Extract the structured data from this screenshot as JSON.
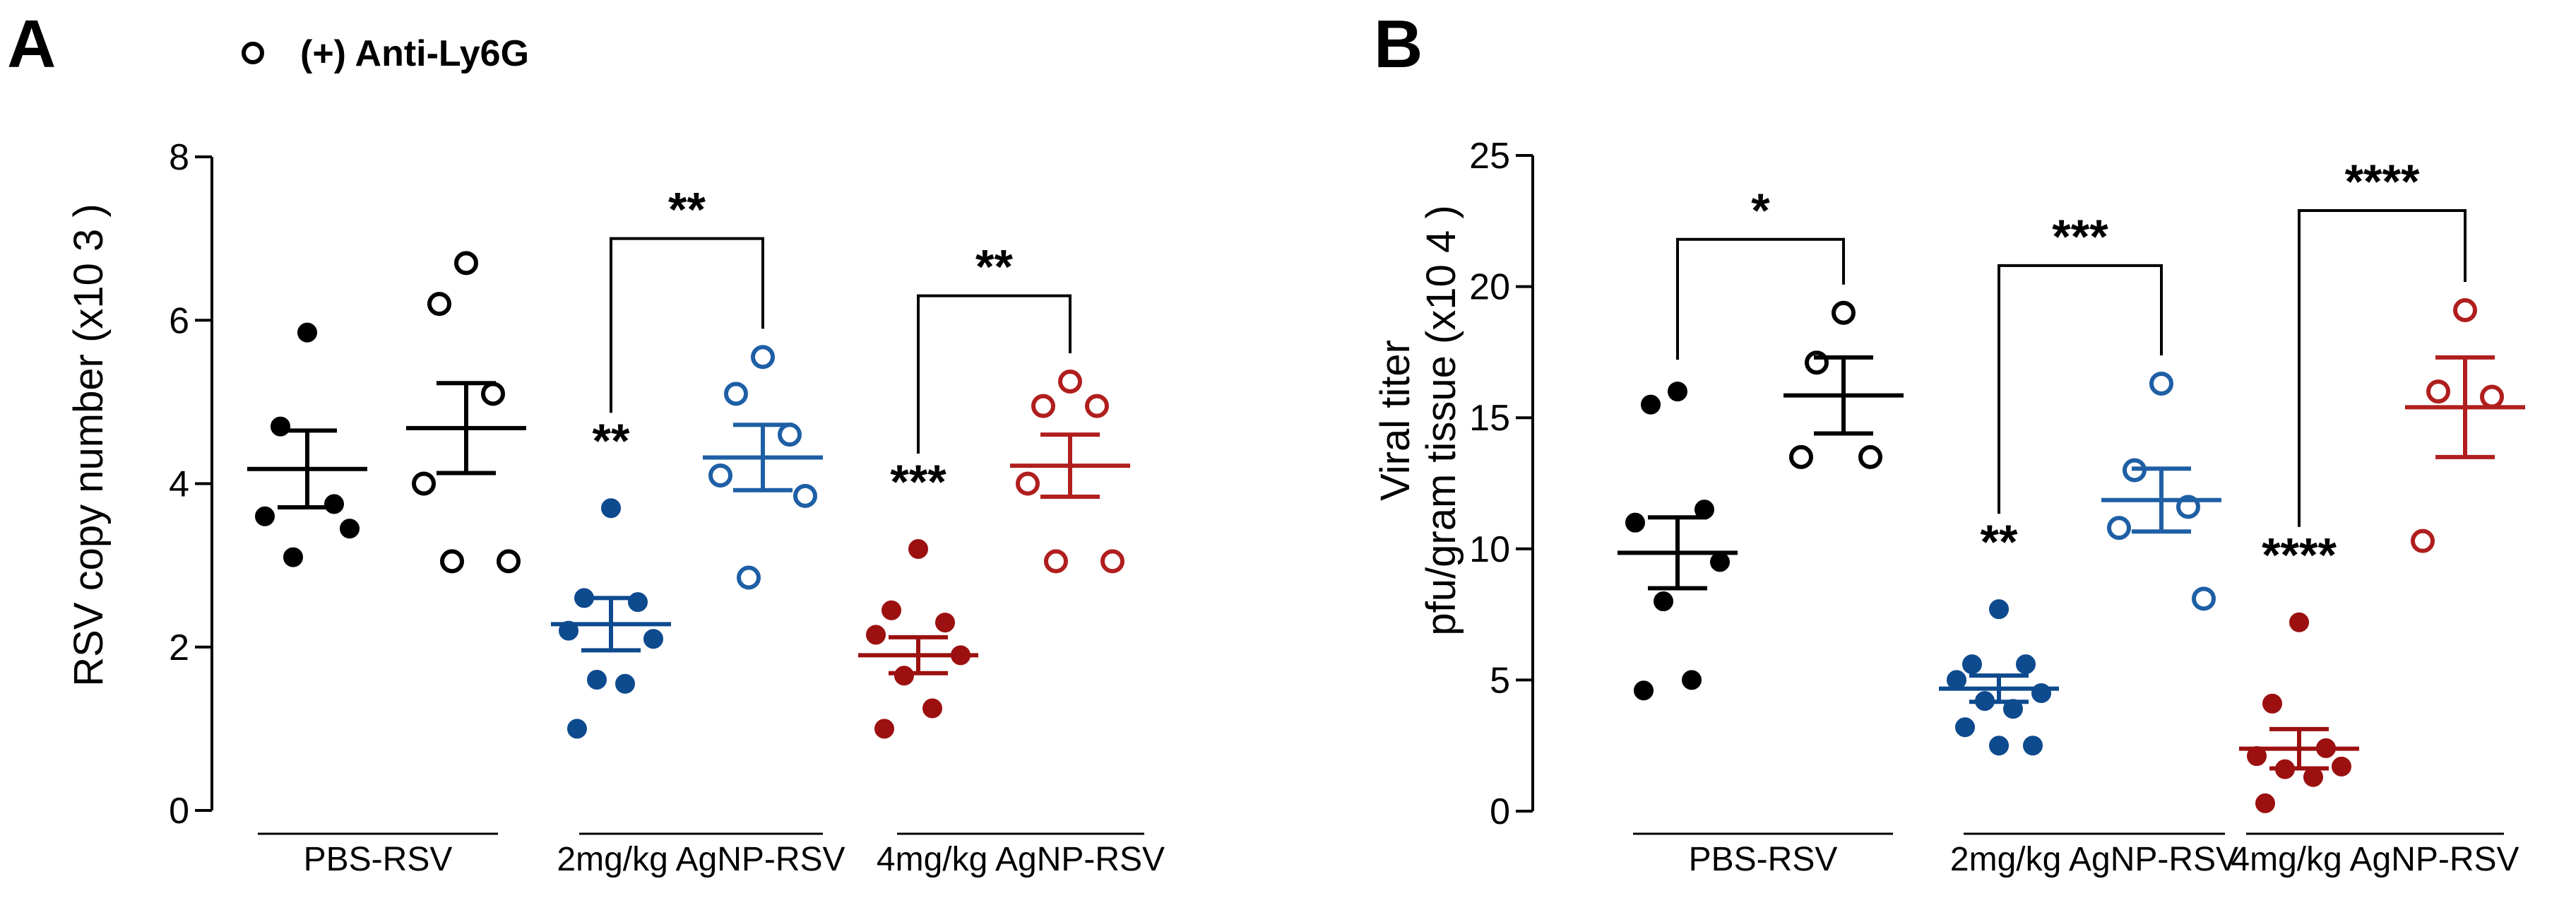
{
  "legend": {
    "label": "(+) Anti-Ly6G",
    "marker": "open-circle"
  },
  "panels": [
    {
      "letter": "A",
      "ylabel": "RSV copy number (x10 3 )"
    },
    {
      "letter": "B",
      "ylabel_line1": "Viral titer",
      "ylabel_line2": "pfu/gram tissue (x10 4 )"
    }
  ],
  "chart_data": [
    {
      "type": "scatter",
      "panel": "A",
      "title": "",
      "ylabel": "RSV copy number (x10 3 )",
      "ylim": [
        0,
        8
      ],
      "yticks": [
        0,
        2,
        4,
        6,
        8
      ],
      "groups": [
        "PBS-RSV",
        "2mg/kg AgNP-RSV",
        "4mg/kg AgNP-RSV"
      ],
      "series": [
        {
          "group": "PBS-RSV",
          "treatment": "control",
          "marker": "filled",
          "color": "#000000",
          "values": [
            5.85,
            4.7,
            3.75,
            3.6,
            3.45,
            3.1
          ],
          "mean": 4.18,
          "sem": 0.47
        },
        {
          "group": "PBS-RSV",
          "treatment": "(+) Anti-Ly6G",
          "marker": "open",
          "color": "#000000",
          "values": [
            6.7,
            6.2,
            5.1,
            4.0,
            3.05,
            3.05
          ],
          "mean": 4.68,
          "sem": 0.55
        },
        {
          "group": "2mg/kg AgNP-RSV",
          "treatment": "control",
          "marker": "filled",
          "color": "#0e4a8e",
          "values": [
            3.7,
            2.6,
            2.55,
            2.2,
            2.1,
            1.6,
            1.55,
            1.0
          ],
          "mean": 2.28,
          "sem": 0.32
        },
        {
          "group": "2mg/kg AgNP-RSV",
          "treatment": "(+) Anti-Ly6G",
          "marker": "open",
          "color": "#1e5fa5",
          "values": [
            5.55,
            5.1,
            4.6,
            4.1,
            3.85,
            2.85
          ],
          "mean": 4.32,
          "sem": 0.4
        },
        {
          "group": "4mg/kg AgNP-RSV",
          "treatment": "control",
          "marker": "filled",
          "color": "#9c1010",
          "values": [
            3.2,
            2.45,
            2.3,
            2.15,
            1.9,
            1.65,
            1.25,
            1.0
          ],
          "mean": 1.9,
          "sem": 0.22
        },
        {
          "group": "4mg/kg AgNP-RSV",
          "treatment": "(+) Anti-Ly6G",
          "marker": "open",
          "color": "#b01e1e",
          "values": [
            5.25,
            4.95,
            4.95,
            4.0,
            3.05,
            3.05
          ],
          "mean": 4.22,
          "sem": 0.38
        }
      ],
      "annotations": [
        {
          "text": "**",
          "type": "vs-control",
          "group": "2mg/kg AgNP-RSV"
        },
        {
          "text": "***",
          "type": "vs-control",
          "group": "4mg/kg AgNP-RSV"
        },
        {
          "text": "**",
          "type": "bracket",
          "group": "2mg/kg AgNP-RSV",
          "y": 7.0
        },
        {
          "text": "**",
          "type": "bracket",
          "group": "4mg/kg AgNP-RSV",
          "y": 6.3
        }
      ]
    },
    {
      "type": "scatter",
      "panel": "B",
      "title": "",
      "ylabel": "Viral titer pfu/gram tissue (x10 4 )",
      "ylim": [
        0,
        25
      ],
      "yticks": [
        0,
        5,
        10,
        15,
        20,
        25
      ],
      "groups": [
        "PBS-RSV",
        "2mg/kg AgNP-RSV",
        "4mg/kg AgNP-RSV"
      ],
      "series": [
        {
          "group": "PBS-RSV",
          "treatment": "control",
          "marker": "filled",
          "color": "#000000",
          "values": [
            16.0,
            15.5,
            11.5,
            11.0,
            9.5,
            8.0,
            5.0,
            4.6
          ],
          "mean": 9.85,
          "sem": 1.35
        },
        {
          "group": "PBS-RSV",
          "treatment": "(+) Anti-Ly6G",
          "marker": "open",
          "color": "#000000",
          "values": [
            19.0,
            17.1,
            13.5,
            13.5
          ],
          "mean": 15.85,
          "sem": 1.45
        },
        {
          "group": "2mg/kg AgNP-RSV",
          "treatment": "control",
          "marker": "filled",
          "color": "#0e4a8e",
          "values": [
            7.7,
            5.6,
            5.6,
            5.0,
            4.5,
            4.2,
            3.9,
            3.2,
            2.5,
            2.5
          ],
          "mean": 4.67,
          "sem": 0.5
        },
        {
          "group": "2mg/kg AgNP-RSV",
          "treatment": "(+) Anti-Ly6G",
          "marker": "open",
          "color": "#1e5fa5",
          "values": [
            16.3,
            13.0,
            11.6,
            10.8,
            8.1
          ],
          "mean": 11.86,
          "sem": 1.2
        },
        {
          "group": "4mg/kg AgNP-RSV",
          "treatment": "control",
          "marker": "filled",
          "color": "#9c1010",
          "values": [
            7.2,
            4.1,
            2.4,
            2.1,
            1.7,
            1.6,
            1.3,
            0.3
          ],
          "mean": 2.38,
          "sem": 0.75
        },
        {
          "group": "4mg/kg AgNP-RSV",
          "treatment": "(+) Anti-Ly6G",
          "marker": "open",
          "color": "#b01e1e",
          "values": [
            19.1,
            16.0,
            15.8,
            10.3
          ],
          "mean": 15.4,
          "sem": 1.9
        }
      ],
      "annotations": [
        {
          "text": "*",
          "type": "bracket",
          "group": "PBS-RSV",
          "y": 21.8
        },
        {
          "text": "**",
          "type": "vs-control",
          "group": "2mg/kg AgNP-RSV"
        },
        {
          "text": "****",
          "type": "vs-control",
          "group": "4mg/kg AgNP-RSV"
        },
        {
          "text": "***",
          "type": "bracket",
          "group": "2mg/kg AgNP-RSV",
          "y": 20.8
        },
        {
          "text": "****",
          "type": "bracket",
          "group": "4mg/kg AgNP-RSV",
          "y": 22.9
        }
      ]
    }
  ]
}
